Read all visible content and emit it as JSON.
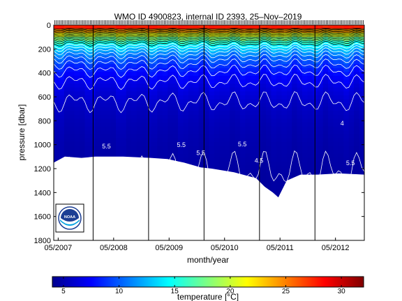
{
  "chart_data": {
    "type": "heatmap",
    "title": "WMO ID 4900823, internal ID 2393, 25–Nov–2019",
    "xlabel": "month/year",
    "ylabel": "pressure [dbar]",
    "colorbar_label": "temperature [",
    "colorbar_unit": "°C]",
    "x_tick_labels": [
      "05/2007",
      "05/2008",
      "05/2009",
      "05/2010",
      "05/2011",
      "05/2012"
    ],
    "x_ticks": [
      2007.33,
      2008.33,
      2009.33,
      2010.33,
      2011.33,
      2012.33
    ],
    "xlim": [
      2007.25,
      2012.85
    ],
    "y_ticks": [
      0,
      200,
      400,
      600,
      800,
      1000,
      1200,
      1400,
      1600,
      1800
    ],
    "ylim": [
      0,
      1800
    ],
    "y_reversed": true,
    "colorbar_ticks": [
      5,
      10,
      15,
      20,
      25,
      30
    ],
    "colorbar_range": [
      4,
      32
    ],
    "colormap": "jet",
    "year_separators": [
      2007.96,
      2008.96,
      2009.96,
      2010.96,
      2011.96
    ],
    "contour_labels": [
      "5.5",
      "5.5",
      "5.5",
      "5.5",
      "4.5",
      "5.5",
      "4"
    ],
    "surface_temperature": 27,
    "deep_temperature": 4.5,
    "profile_max_depth": [
      {
        "x": 2007.25,
        "p": 1150
      },
      {
        "x": 2007.45,
        "p": 1100
      },
      {
        "x": 2007.75,
        "p": 1110
      },
      {
        "x": 2008.0,
        "p": 1100
      },
      {
        "x": 2008.5,
        "p": 1100
      },
      {
        "x": 2009.0,
        "p": 1110
      },
      {
        "x": 2009.3,
        "p": 1120
      },
      {
        "x": 2009.6,
        "p": 1150
      },
      {
        "x": 2009.9,
        "p": 1190
      },
      {
        "x": 2010.1,
        "p": 1200
      },
      {
        "x": 2010.5,
        "p": 1230
      },
      {
        "x": 2010.9,
        "p": 1280
      },
      {
        "x": 2011.05,
        "p": 1350
      },
      {
        "x": 2011.2,
        "p": 1400
      },
      {
        "x": 2011.3,
        "p": 1440
      },
      {
        "x": 2011.45,
        "p": 1300
      },
      {
        "x": 2011.7,
        "p": 1250
      },
      {
        "x": 2012.0,
        "p": 1250
      },
      {
        "x": 2012.4,
        "p": 1240
      },
      {
        "x": 2012.85,
        "p": 1250
      }
    ],
    "logo_text": "NOAA",
    "grid": false
  }
}
